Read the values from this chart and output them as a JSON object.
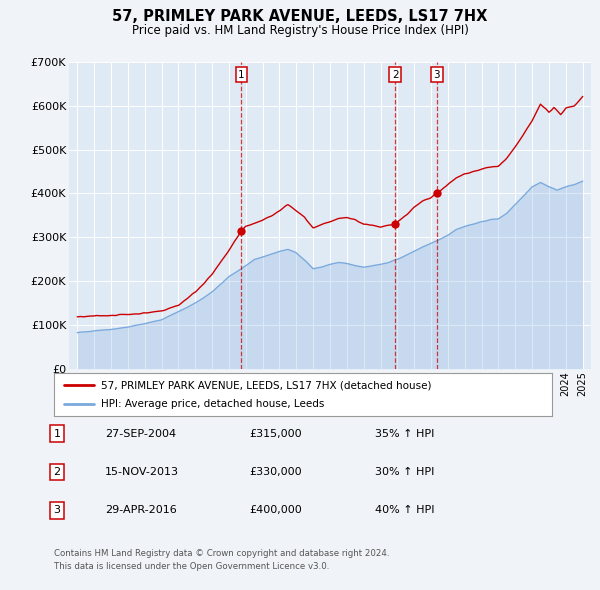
{
  "title": "57, PRIMLEY PARK AVENUE, LEEDS, LS17 7HX",
  "subtitle": "Price paid vs. HM Land Registry's House Price Index (HPI)",
  "legend_line1": "57, PRIMLEY PARK AVENUE, LEEDS, LS17 7HX (detached house)",
  "legend_line2": "HPI: Average price, detached house, Leeds",
  "footnote1": "Contains HM Land Registry data © Crown copyright and database right 2024.",
  "footnote2": "This data is licensed under the Open Government Licence v3.0.",
  "sale_color": "#cc0000",
  "hpi_color": "#7aaadd",
  "background_color": "#f0f4f8",
  "plot_bg_color": "#e0eaf5",
  "grid_color": "#ffffff",
  "sales": [
    {
      "label": "1",
      "date_num": 2004.74,
      "price": 315000,
      "date_str": "27-SEP-2004",
      "pct": "35%",
      "dir": "↑"
    },
    {
      "label": "2",
      "date_num": 2013.87,
      "price": 330000,
      "date_str": "15-NOV-2013",
      "pct": "30%",
      "dir": "↑"
    },
    {
      "label": "3",
      "date_num": 2016.33,
      "price": 400000,
      "date_str": "29-APR-2016",
      "pct": "40%",
      "dir": "↑"
    }
  ],
  "ylim": [
    0,
    700000
  ],
  "yticks": [
    0,
    100000,
    200000,
    300000,
    400000,
    500000,
    600000,
    700000
  ],
  "ytick_labels": [
    "£0",
    "£100K",
    "£200K",
    "£300K",
    "£400K",
    "£500K",
    "£600K",
    "£700K"
  ],
  "xlim_start": 1994.5,
  "xlim_end": 2025.5
}
